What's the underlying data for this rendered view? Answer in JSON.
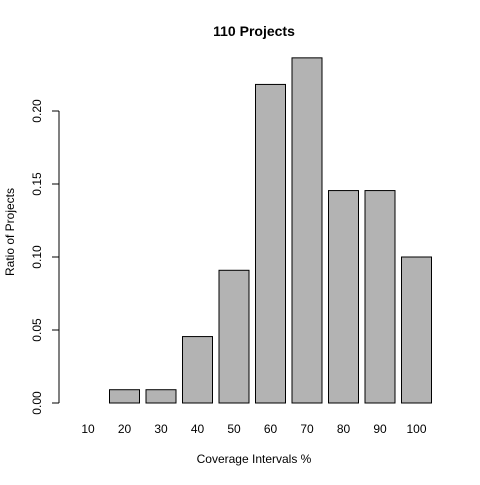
{
  "chart_data": {
    "type": "bar",
    "title": "110 Projects",
    "xlabel": "Coverage Intervals %",
    "ylabel": "Ratio of Projects",
    "categories": [
      "10",
      "20",
      "30",
      "40",
      "50",
      "60",
      "70",
      "80",
      "90",
      "100"
    ],
    "values": [
      0.0,
      0.0091,
      0.0091,
      0.0455,
      0.0909,
      0.2182,
      0.2364,
      0.1455,
      0.1455,
      0.1
    ],
    "y_ticks": [
      "0.00",
      "0.05",
      "0.10",
      "0.15",
      "0.20"
    ],
    "ylim": [
      0,
      0.24
    ],
    "grid": false,
    "legend": "none",
    "bar_color": "#b3b3b3",
    "bar_outline_color": "#000000"
  }
}
